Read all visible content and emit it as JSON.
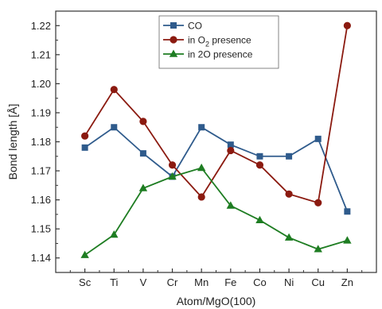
{
  "chart_data": {
    "type": "line",
    "title": "",
    "xlabel": "Atom/MgO(100)",
    "ylabel": "Bond length [Å]",
    "categories": [
      "Sc",
      "Ti",
      "V",
      "Cr",
      "Mn",
      "Fe",
      "Co",
      "Ni",
      "Cu",
      "Zn"
    ],
    "ylim": [
      1.135,
      1.225
    ],
    "yticks": [
      "1.14",
      "1.15",
      "1.16",
      "1.17",
      "1.18",
      "1.19",
      "1.20",
      "1.21",
      "1.22"
    ],
    "grid": false,
    "legend_position": "top-center",
    "series": [
      {
        "name_parts": [
          "CO"
        ],
        "marker": "square",
        "color": "#2f5b8c",
        "values": [
          1.178,
          1.185,
          1.176,
          1.168,
          1.185,
          1.179,
          1.175,
          1.175,
          1.181,
          1.156
        ]
      },
      {
        "name_parts": [
          "in O",
          "2",
          " presence"
        ],
        "marker": "circle",
        "color": "#8b1a10",
        "values": [
          1.182,
          1.198,
          1.187,
          1.172,
          1.161,
          1.177,
          1.172,
          1.162,
          1.159,
          1.22
        ]
      },
      {
        "name_parts": [
          "in 2O presence"
        ],
        "marker": "triangle",
        "color": "#1e7d22",
        "values": [
          1.141,
          1.148,
          1.164,
          1.168,
          1.171,
          1.158,
          1.153,
          1.147,
          1.143,
          1.146
        ]
      }
    ]
  }
}
